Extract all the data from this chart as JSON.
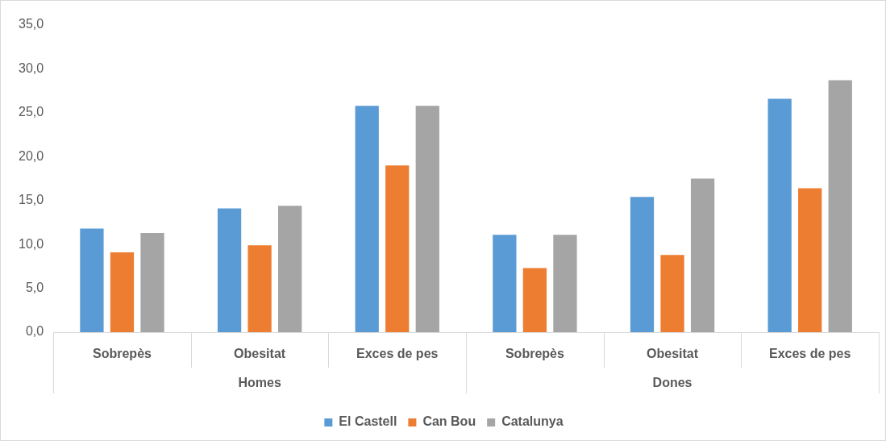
{
  "chart_data": {
    "type": "bar",
    "categories": [
      "Sobrepès",
      "Obesitat",
      "Exces de pes",
      "Sobrepès",
      "Obesitat",
      "Exces de pes"
    ],
    "series": [
      {
        "name": "El Castell",
        "color": "#5b9bd5",
        "values": [
          11.8,
          14.1,
          25.8,
          11.1,
          15.4,
          26.6
        ]
      },
      {
        "name": "Can Bou",
        "color": "#ed7d31",
        "values": [
          9.1,
          9.9,
          19.0,
          7.3,
          8.8,
          16.4
        ]
      },
      {
        "name": "Catalunya",
        "color": "#a5a5a5",
        "values": [
          11.3,
          14.4,
          25.8,
          11.1,
          17.5,
          28.7
        ]
      }
    ],
    "annotations": [
      "Homes",
      "Dones"
    ],
    "ylim": [
      0,
      35
    ],
    "yticks": [
      {
        "value": 0,
        "label": "0,0"
      },
      {
        "value": 5,
        "label": "5,0"
      },
      {
        "value": 10,
        "label": "10,0"
      },
      {
        "value": 15,
        "label": "15,0"
      },
      {
        "value": 20,
        "label": "20,0"
      },
      {
        "value": 25,
        "label": "25,0"
      },
      {
        "value": 30,
        "label": "30,0"
      },
      {
        "value": 35,
        "label": "35,0"
      }
    ],
    "grid": false,
    "legend": "bottom"
  }
}
